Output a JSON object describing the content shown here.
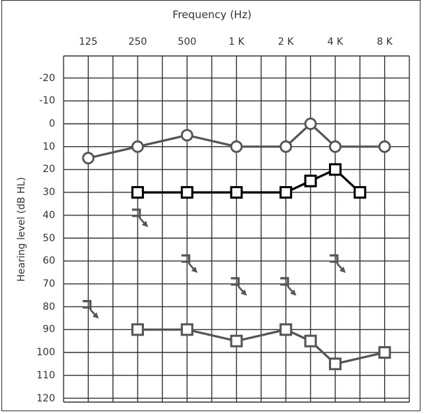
{
  "chart_data": {
    "type": "line",
    "title": "Frequency (Hz)",
    "xlabel": "Frequency (Hz)",
    "ylabel": "Hearing level (dB HL)",
    "x_tick_labels": [
      "125",
      "250",
      "500",
      "1 K",
      "2 K",
      "4 K",
      "8 K"
    ],
    "y_tick_labels": [
      "-20",
      "-10",
      "0",
      "10",
      "20",
      "30",
      "40",
      "50",
      "60",
      "70",
      "80",
      "90",
      "100",
      "110",
      "120"
    ],
    "ylim": [
      -30,
      120
    ],
    "y_inverted": true,
    "grid": true,
    "x_positions_hz": [
      125,
      250,
      500,
      1000,
      2000,
      3000,
      4000,
      6000,
      8000
    ],
    "series": [
      {
        "name": "circle-series",
        "marker": "circle",
        "color": "#555555",
        "points": [
          {
            "hz": 125,
            "db": 15
          },
          {
            "hz": 250,
            "db": 10
          },
          {
            "hz": 500,
            "db": 5
          },
          {
            "hz": 1000,
            "db": 10
          },
          {
            "hz": 2000,
            "db": 10
          },
          {
            "hz": 3000,
            "db": 0
          },
          {
            "hz": 4000,
            "db": 10
          },
          {
            "hz": 8000,
            "db": 10
          }
        ]
      },
      {
        "name": "square-series-black",
        "marker": "square",
        "color": "#000000",
        "points": [
          {
            "hz": 250,
            "db": 30
          },
          {
            "hz": 500,
            "db": 30
          },
          {
            "hz": 1000,
            "db": 30
          },
          {
            "hz": 2000,
            "db": 30
          },
          {
            "hz": 3000,
            "db": 25
          },
          {
            "hz": 4000,
            "db": 20
          },
          {
            "hz": 6000,
            "db": 30
          }
        ]
      },
      {
        "name": "square-series-gray",
        "marker": "square",
        "color": "#555555",
        "points": [
          {
            "hz": 250,
            "db": 90
          },
          {
            "hz": 500,
            "db": 90
          },
          {
            "hz": 1000,
            "db": 95
          },
          {
            "hz": 2000,
            "db": 90
          },
          {
            "hz": 3000,
            "db": 95
          },
          {
            "hz": 4000,
            "db": 105
          },
          {
            "hz": 8000,
            "db": 100
          }
        ]
      },
      {
        "name": "bracket-no-response",
        "marker": "bracket-arrow",
        "color": "#555555",
        "connected": false,
        "points": [
          {
            "hz": 125,
            "db": 80
          },
          {
            "hz": 250,
            "db": 40
          },
          {
            "hz": 500,
            "db": 60
          },
          {
            "hz": 1000,
            "db": 70
          },
          {
            "hz": 2000,
            "db": 70
          },
          {
            "hz": 4000,
            "db": 60
          }
        ]
      }
    ]
  }
}
